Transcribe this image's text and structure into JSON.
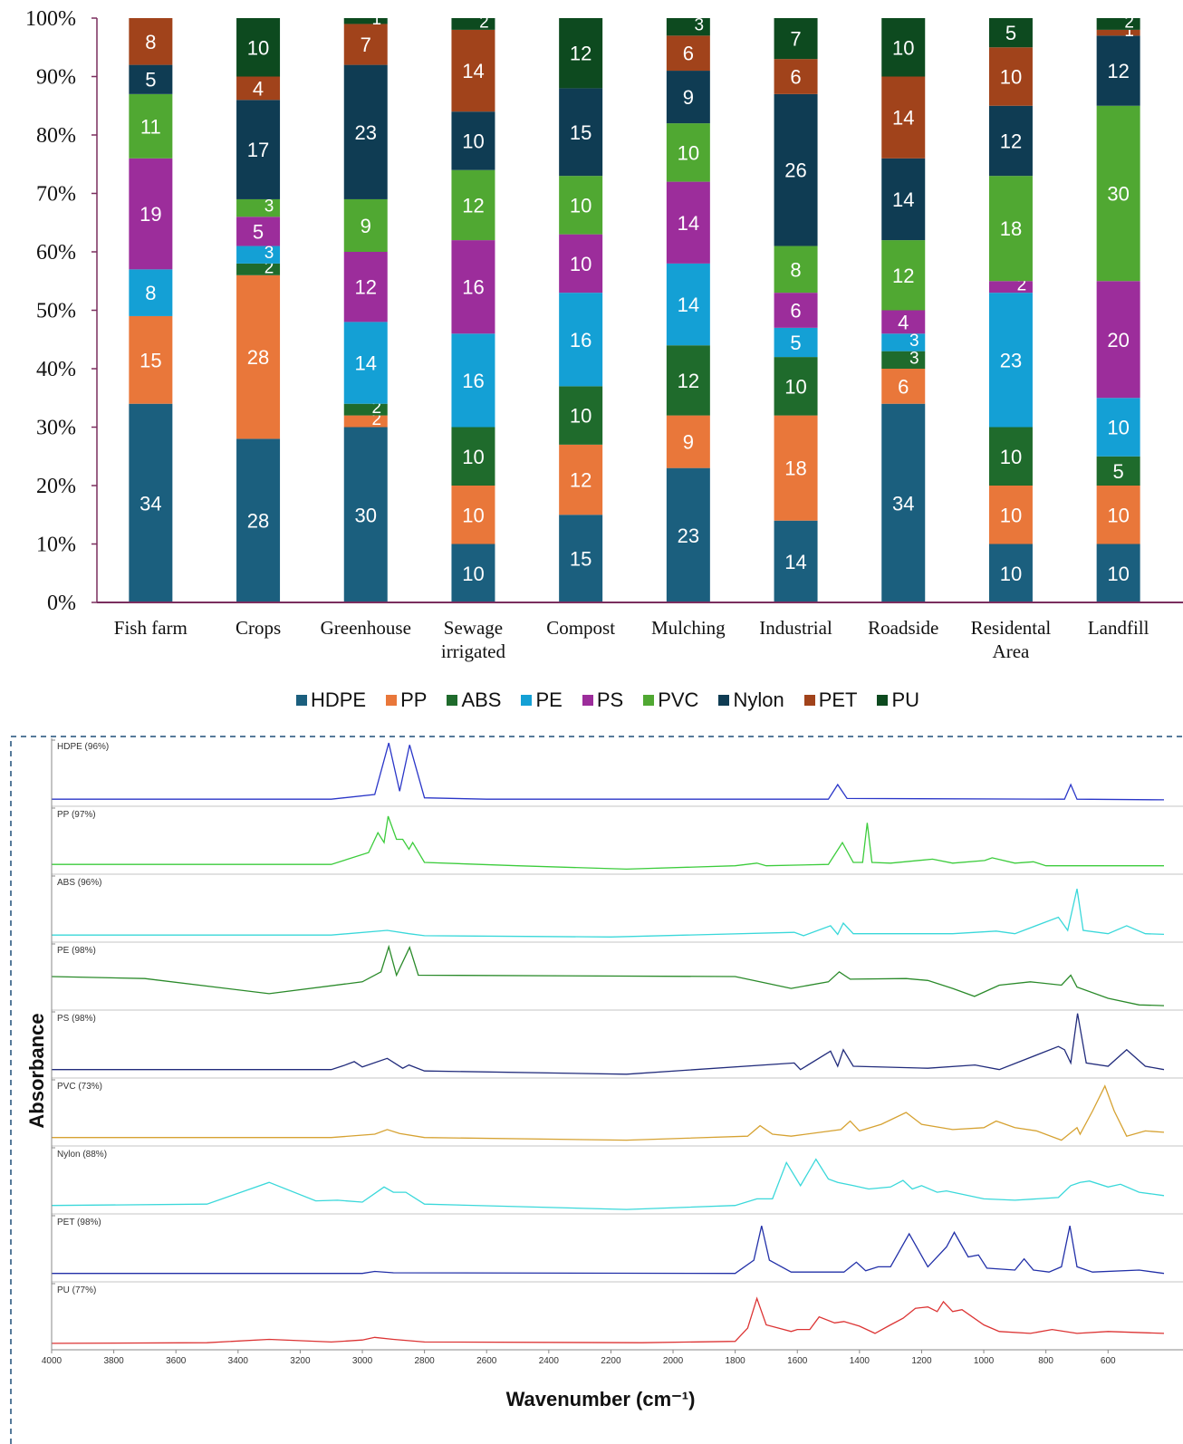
{
  "chart_data": [
    {
      "type": "bar",
      "stacked": true,
      "categories": [
        "Fish farm",
        "Crops",
        "Greenhouse",
        "Sewage irrigated",
        "Compost",
        "Mulching",
        "Industrial",
        "Roadside",
        "Residental Area",
        "Landfill"
      ],
      "series": [
        {
          "name": "HDPE",
          "color": "#1b5f7e",
          "values": [
            34,
            28,
            30,
            10,
            15,
            23,
            14,
            34,
            10,
            10
          ]
        },
        {
          "name": "PP",
          "color": "#e9773a",
          "values": [
            15,
            28,
            2,
            10,
            12,
            9,
            18,
            6,
            10,
            10
          ]
        },
        {
          "name": "ABS",
          "color": "#1f6b2c",
          "values": [
            null,
            2,
            2,
            10,
            10,
            12,
            10,
            3,
            10,
            5
          ]
        },
        {
          "name": "PE",
          "color": "#14a0d5",
          "values": [
            8,
            3,
            14,
            16,
            16,
            14,
            5,
            3,
            23,
            10
          ]
        },
        {
          "name": "PS",
          "color": "#9c2d9b",
          "values": [
            19,
            5,
            12,
            16,
            10,
            14,
            6,
            4,
            2,
            20
          ]
        },
        {
          "name": "PVC",
          "color": "#50a832",
          "values": [
            11,
            3,
            9,
            12,
            10,
            10,
            8,
            12,
            18,
            30
          ]
        },
        {
          "name": "Nylon",
          "color": "#0f3c53",
          "values": [
            5,
            17,
            23,
            10,
            15,
            9,
            26,
            14,
            12,
            12
          ]
        },
        {
          "name": "PET",
          "color": "#a1431b",
          "values": [
            8,
            4,
            7,
            14,
            null,
            6,
            6,
            14,
            10,
            1
          ]
        },
        {
          "name": "PU",
          "color": "#0d4a1f",
          "values": [
            null,
            10,
            1,
            2,
            12,
            3,
            7,
            10,
            5,
            2
          ]
        }
      ],
      "ylim": [
        0,
        100
      ],
      "yticks": [
        {
          "value": 0,
          "label": "0%"
        },
        {
          "value": 10,
          "label": "10%"
        },
        {
          "value": 20,
          "label": "20%"
        },
        {
          "value": 30,
          "label": "30%"
        },
        {
          "value": 40,
          "label": "40%"
        },
        {
          "value": 50,
          "label": "50%"
        },
        {
          "value": 60,
          "label": "60%"
        },
        {
          "value": 70,
          "label": "70%"
        },
        {
          "value": 80,
          "label": "80%"
        },
        {
          "value": 90,
          "label": "90%"
        },
        {
          "value": 100,
          "label": "100%"
        }
      ]
    },
    {
      "type": "line",
      "x_label": "Wavenumber (cm⁻¹)",
      "y_label": "Absorbance",
      "xlim": [
        4000,
        420
      ],
      "ylim": [
        0,
        1
      ],
      "xticks": [
        4000,
        3800,
        3600,
        3400,
        3200,
        3000,
        2800,
        2600,
        2400,
        2200,
        2000,
        1800,
        1600,
        1400,
        1200,
        1000,
        800,
        600
      ],
      "series": [
        {
          "name": "HDPE (96%)",
          "color": "#2a36c8",
          "x": [
            4000,
            3100,
            2960,
            2915,
            2880,
            2848,
            2800,
            2600,
            1500,
            1470,
            1440,
            740,
            720,
            700,
            420
          ],
          "values": [
            0.08,
            0.08,
            0.15,
            0.93,
            0.2,
            0.9,
            0.1,
            0.08,
            0.08,
            0.3,
            0.09,
            0.08,
            0.3,
            0.08,
            0.07
          ]
        },
        {
          "name": "PP (97%)",
          "color": "#3ccc3c",
          "x": [
            4000,
            3100,
            2980,
            2950,
            2930,
            2917,
            2890,
            2870,
            2850,
            2838,
            2800,
            2500,
            2150,
            1800,
            1730,
            1700,
            1500,
            1455,
            1420,
            1390,
            1375,
            1360,
            1300,
            1165,
            1100,
            997,
            973,
            900,
            840,
            800,
            420
          ],
          "values": [
            0.12,
            0.12,
            0.3,
            0.6,
            0.45,
            0.85,
            0.5,
            0.5,
            0.35,
            0.45,
            0.15,
            0.1,
            0.05,
            0.1,
            0.14,
            0.1,
            0.12,
            0.45,
            0.15,
            0.15,
            0.75,
            0.15,
            0.14,
            0.2,
            0.14,
            0.18,
            0.22,
            0.14,
            0.16,
            0.1,
            0.1
          ]
        },
        {
          "name": "ABS (96%)",
          "color": "#3ad8da",
          "x": [
            4000,
            3100,
            2920,
            2850,
            2800,
            2200,
            1610,
            1580,
            1493,
            1470,
            1452,
            1420,
            1100,
            960,
            900,
            760,
            730,
            700,
            680,
            600,
            540,
            480,
            420
          ],
          "values": [
            0.08,
            0.08,
            0.15,
            0.1,
            0.07,
            0.05,
            0.12,
            0.07,
            0.22,
            0.09,
            0.26,
            0.1,
            0.1,
            0.14,
            0.1,
            0.35,
            0.15,
            0.78,
            0.15,
            0.1,
            0.22,
            0.1,
            0.09
          ]
        },
        {
          "name": "PE (98%)",
          "color": "#2a8a2a",
          "x": [
            4000,
            3700,
            3300,
            3000,
            2940,
            2915,
            2890,
            2848,
            2820,
            1800,
            1700,
            1620,
            1500,
            1465,
            1430,
            1250,
            1180,
            1100,
            1030,
            950,
            850,
            750,
            720,
            700,
            600,
            500,
            420
          ],
          "values": [
            0.48,
            0.45,
            0.22,
            0.4,
            0.55,
            0.93,
            0.5,
            0.92,
            0.5,
            0.48,
            0.38,
            0.3,
            0.4,
            0.55,
            0.44,
            0.45,
            0.42,
            0.3,
            0.18,
            0.35,
            0.4,
            0.35,
            0.5,
            0.32,
            0.15,
            0.05,
            0.04
          ]
        },
        {
          "name": "PS (98%)",
          "color": "#222c7c",
          "x": [
            4000,
            3100,
            3060,
            3026,
            3000,
            2920,
            2870,
            2850,
            2800,
            2150,
            1610,
            1590,
            1493,
            1470,
            1452,
            1420,
            1180,
            1028,
            950,
            760,
            740,
            720,
            698,
            670,
            600,
            540,
            480,
            420
          ],
          "values": [
            0.1,
            0.1,
            0.16,
            0.22,
            0.14,
            0.27,
            0.12,
            0.17,
            0.08,
            0.03,
            0.2,
            0.1,
            0.38,
            0.15,
            0.4,
            0.15,
            0.12,
            0.17,
            0.1,
            0.45,
            0.4,
            0.2,
            0.95,
            0.2,
            0.15,
            0.4,
            0.15,
            0.1
          ]
        },
        {
          "name": "PVC (73%)",
          "color": "#d6a232",
          "x": [
            4000,
            3100,
            2960,
            2920,
            2880,
            2800,
            2150,
            1760,
            1720,
            1680,
            1620,
            1460,
            1430,
            1400,
            1330,
            1250,
            1200,
            1100,
            1000,
            960,
            900,
            830,
            750,
            700,
            690,
            650,
            610,
            580,
            540,
            480,
            420
          ],
          "values": [
            0.1,
            0.1,
            0.15,
            0.22,
            0.16,
            0.1,
            0.06,
            0.12,
            0.28,
            0.15,
            0.12,
            0.22,
            0.35,
            0.2,
            0.3,
            0.48,
            0.3,
            0.22,
            0.25,
            0.35,
            0.25,
            0.2,
            0.06,
            0.25,
            0.15,
            0.5,
            0.88,
            0.5,
            0.12,
            0.2,
            0.18
          ]
        },
        {
          "name": "Nylon (88%)",
          "color": "#3ad8da",
          "x": [
            4000,
            3500,
            3300,
            3150,
            3080,
            3000,
            2930,
            2900,
            2860,
            2800,
            2150,
            1800,
            1730,
            1680,
            1635,
            1590,
            1540,
            1500,
            1470,
            1420,
            1370,
            1300,
            1260,
            1230,
            1200,
            1150,
            1120,
            1000,
            900,
            760,
            720,
            690,
            660,
            600,
            560,
            500,
            420
          ],
          "values": [
            0.1,
            0.12,
            0.45,
            0.17,
            0.18,
            0.15,
            0.38,
            0.3,
            0.3,
            0.12,
            0.04,
            0.1,
            0.2,
            0.2,
            0.75,
            0.4,
            0.8,
            0.5,
            0.45,
            0.4,
            0.35,
            0.38,
            0.48,
            0.35,
            0.4,
            0.3,
            0.32,
            0.2,
            0.18,
            0.22,
            0.4,
            0.45,
            0.47,
            0.38,
            0.42,
            0.3,
            0.25
          ]
        },
        {
          "name": "PET (98%)",
          "color": "#2230a8",
          "x": [
            4000,
            3000,
            2960,
            2900,
            1800,
            1740,
            1715,
            1690,
            1620,
            1450,
            1410,
            1380,
            1340,
            1300,
            1240,
            1180,
            1120,
            1095,
            1050,
            1017,
            990,
            900,
            870,
            840,
            790,
            750,
            723,
            700,
            650,
            500,
            420
          ],
          "values": [
            0.1,
            0.1,
            0.13,
            0.11,
            0.1,
            0.3,
            0.82,
            0.3,
            0.12,
            0.12,
            0.27,
            0.14,
            0.2,
            0.2,
            0.7,
            0.2,
            0.5,
            0.72,
            0.35,
            0.38,
            0.18,
            0.15,
            0.32,
            0.15,
            0.12,
            0.2,
            0.82,
            0.2,
            0.12,
            0.15,
            0.1
          ]
        },
        {
          "name": "PU (77%)",
          "color": "#dc3434",
          "x": [
            4000,
            3500,
            3300,
            3100,
            3000,
            2960,
            2900,
            2800,
            2100,
            1800,
            1760,
            1730,
            1700,
            1660,
            1620,
            1600,
            1560,
            1530,
            1480,
            1450,
            1400,
            1350,
            1300,
            1260,
            1220,
            1180,
            1150,
            1130,
            1100,
            1070,
            1000,
            950,
            850,
            780,
            700,
            600,
            420
          ],
          "values": [
            0.07,
            0.08,
            0.13,
            0.09,
            0.12,
            0.16,
            0.13,
            0.09,
            0.08,
            0.1,
            0.3,
            0.75,
            0.35,
            0.3,
            0.25,
            0.28,
            0.28,
            0.47,
            0.38,
            0.4,
            0.33,
            0.22,
            0.35,
            0.45,
            0.6,
            0.62,
            0.55,
            0.7,
            0.55,
            0.58,
            0.35,
            0.25,
            0.22,
            0.28,
            0.22,
            0.25,
            0.22
          ]
        }
      ]
    }
  ]
}
